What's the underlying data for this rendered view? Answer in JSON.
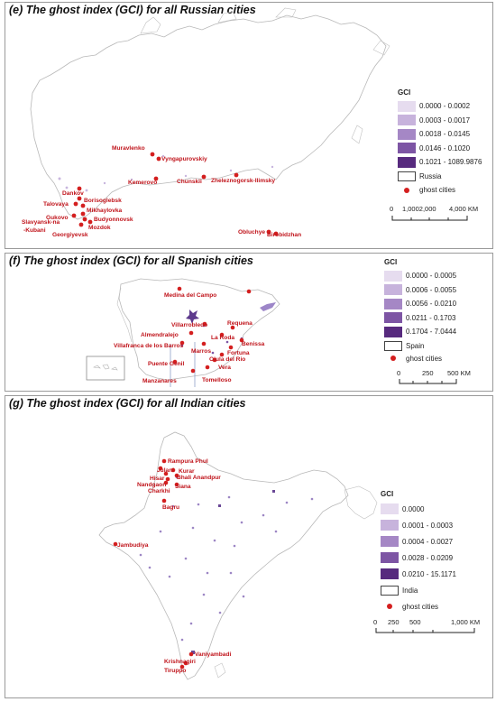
{
  "panels": [
    {
      "title": "(e)  The ghost index (GCI) for all Russian cities",
      "legend_title": "GCI",
      "classes": [
        {
          "label": "0.0000 - 0.0002",
          "color": "#e6dcef"
        },
        {
          "label": "0.0003 - 0.0017",
          "color": "#c7b3dc"
        },
        {
          "label": "0.0018 - 0.0145",
          "color": "#a587c5"
        },
        {
          "label": "0.0146 - 0.1020",
          "color": "#7d55a4"
        },
        {
          "label": "0.1021 - 1089.9876",
          "color": "#572a7e"
        }
      ],
      "boundary_label": "Russia",
      "ghost_label": "ghost cities",
      "scale_ticks": [
        "0",
        "1,0002,000",
        "4,000 KM"
      ],
      "cities": [
        "Muravlenko",
        "Vyngapurovskiy",
        "Kemerovo",
        "Chunskii",
        "Zheleznogorsk-Ilimsky",
        "Dankov",
        "Borisoglebsk",
        "Talovaya",
        "Mikhaylovka",
        "Gukovo",
        "Budyonnovsk",
        "Slavyansk-na",
        "-Kubani",
        "Mozdok",
        "Georgiyevsk",
        "Obluchye",
        "Birobidzhan"
      ]
    },
    {
      "title": "(f)  The ghost index (GCI) for all Spanish cities",
      "legend_title": "GCI",
      "classes": [
        {
          "label": "0.0000 - 0.0005",
          "color": "#e6dcef"
        },
        {
          "label": "0.0006 - 0.0055",
          "color": "#c7b3dc"
        },
        {
          "label": "0.0056 - 0.0210",
          "color": "#a587c5"
        },
        {
          "label": "0.0211 - 0.1703",
          "color": "#7d55a4"
        },
        {
          "label": "0.1704 - 7.0444",
          "color": "#572a7e"
        }
      ],
      "boundary_label": "Spain",
      "ghost_label": "ghost cities",
      "scale_ticks": [
        "0",
        "250",
        "500 KM"
      ],
      "cities": [
        "Medina del Campo",
        "Villarrobledo",
        "Requena",
        "Almendralejo",
        "La Roda",
        "Benissa",
        "Villafranca de los Barros",
        "Marros",
        "Fortuna",
        "Olula del Rio",
        "Puente Genil",
        "Vera",
        "Manzanares",
        "Tomelloso"
      ]
    },
    {
      "title": "(g)  The ghost index (GCI) for all Indian cities",
      "legend_title": "GCI",
      "classes": [
        {
          "label": "0.0000",
          "color": "#e6dcef"
        },
        {
          "label": "0.0001 - 0.0003",
          "color": "#c7b3dc"
        },
        {
          "label": "0.0004 - 0.0027",
          "color": "#a587c5"
        },
        {
          "label": "0.0028 - 0.0209",
          "color": "#7d55a4"
        },
        {
          "label": "0.0210 - 15.1171",
          "color": "#572a7e"
        }
      ],
      "boundary_label": "India",
      "ghost_label": "ghost cities",
      "scale_ticks": [
        "0",
        "250",
        "500",
        "1,000 KM"
      ],
      "cities": [
        "Rampura Phul",
        "Julani",
        "Kurar",
        "Hisar",
        "Bhali Anandpur",
        "Nandgaon",
        "Charkhi",
        "Siana",
        "Bagru",
        "Jambudiya",
        "Vaniyambadi",
        "Krishnagiri",
        "Tiruppo"
      ]
    }
  ]
}
